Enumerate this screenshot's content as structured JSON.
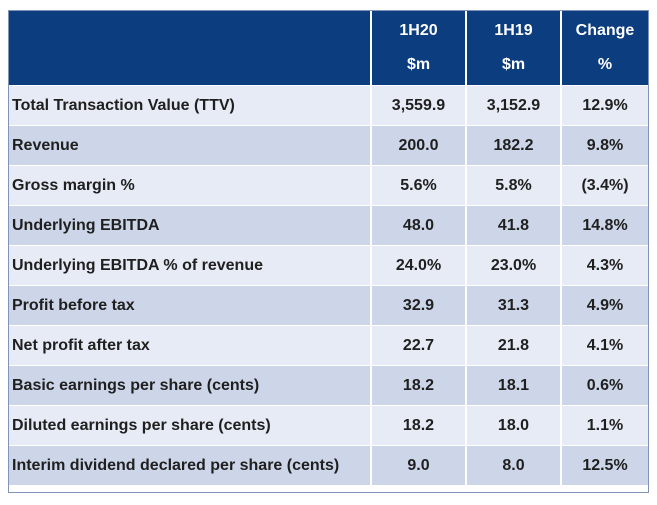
{
  "header": {
    "blank": "",
    "col_1h20_line1": "1H20",
    "col_1h20_line2": "$m",
    "col_1h19_line1": "1H19",
    "col_1h19_line2": "$m",
    "col_change_line1": "Change",
    "col_change_line2": "%"
  },
  "rows": [
    {
      "label": "Total Transaction Value (TTV)",
      "h20": "3,559.9",
      "h19": "3,152.9",
      "change": "12.9%"
    },
    {
      "label": "Revenue",
      "h20": "200.0",
      "h19": "182.2",
      "change": "9.8%"
    },
    {
      "label": "Gross margin %",
      "h20": "5.6%",
      "h19": "5.8%",
      "change": "(3.4%)"
    },
    {
      "label": "Underlying EBITDA",
      "h20": "48.0",
      "h19": "41.8",
      "change": "14.8%"
    },
    {
      "label": "Underlying EBITDA % of revenue",
      "h20": "24.0%",
      "h19": "23.0%",
      "change": "4.3%"
    },
    {
      "label": "Profit before tax",
      "h20": "32.9",
      "h19": "31.3",
      "change": "4.9%"
    },
    {
      "label": "Net profit after tax",
      "h20": "22.7",
      "h19": "21.8",
      "change": "4.1%"
    },
    {
      "label": "Basic earnings per share (cents)",
      "h20": "18.2",
      "h19": "18.1",
      "change": "0.6%"
    },
    {
      "label": "Diluted earnings per share (cents)",
      "h20": "18.2",
      "h19": "18.0",
      "change": "1.1%"
    },
    {
      "label": "Interim dividend declared per share (cents)",
      "h20": "9.0",
      "h19": "8.0",
      "change": "12.5%"
    }
  ],
  "colors": {
    "header_bg": "#0b3d7f",
    "row_light": "#e6ebf5",
    "row_dark": "#cdd6e9"
  }
}
